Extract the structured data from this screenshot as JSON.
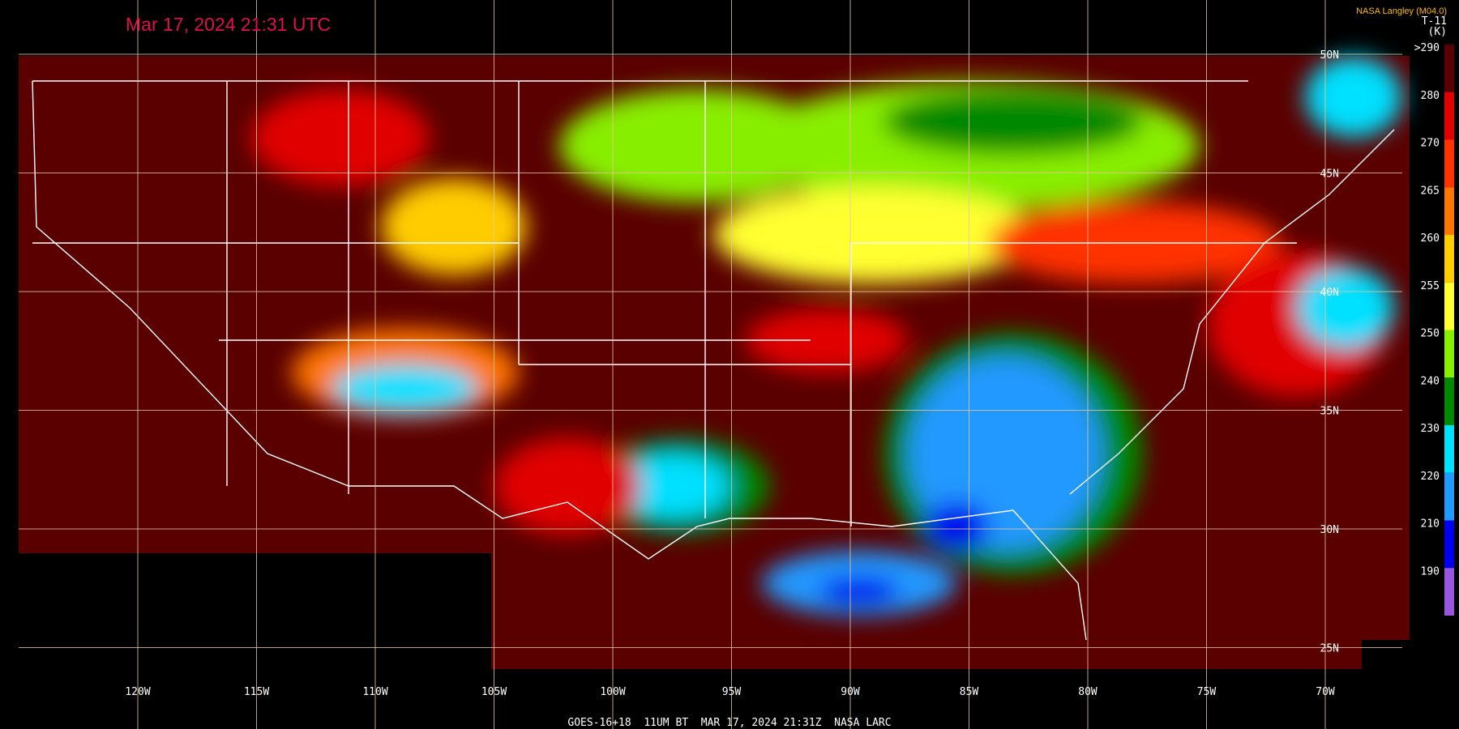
{
  "header": {
    "title": "Mar 17, 2024 21:31 UTC",
    "credit": "NASA Langley (M04.0)",
    "channel": "T-11",
    "unit": "(K)"
  },
  "longitudes": [
    "120W",
    "115W",
    "110W",
    "105W",
    "100W",
    "95W",
    "90W",
    "85W",
    "80W",
    "75W",
    "70W"
  ],
  "latitudes": [
    "50N",
    "45N",
    "40N",
    "35N",
    "30N",
    "25N"
  ],
  "colorbar": [
    {
      "label": ">290",
      "color": "#5a0000"
    },
    {
      "label": "280",
      "color": "#e00000"
    },
    {
      "label": "270",
      "color": "#ff3300"
    },
    {
      "label": "265",
      "color": "#ff7700"
    },
    {
      "label": "260",
      "color": "#ffcc00"
    },
    {
      "label": "255",
      "color": "#ffff33"
    },
    {
      "label": "250",
      "color": "#88ee00"
    },
    {
      "label": "240",
      "color": "#008800"
    },
    {
      "label": "230",
      "color": "#00e0ff"
    },
    {
      "label": "220",
      "color": "#2299ff"
    },
    {
      "label": "210",
      "color": "#0000ee"
    },
    {
      "label": "190",
      "color": "#9955dd"
    }
  ],
  "footer": "GOES-16+18  11UM BT  MAR 17, 2024 21:31Z  NASA LARC"
}
